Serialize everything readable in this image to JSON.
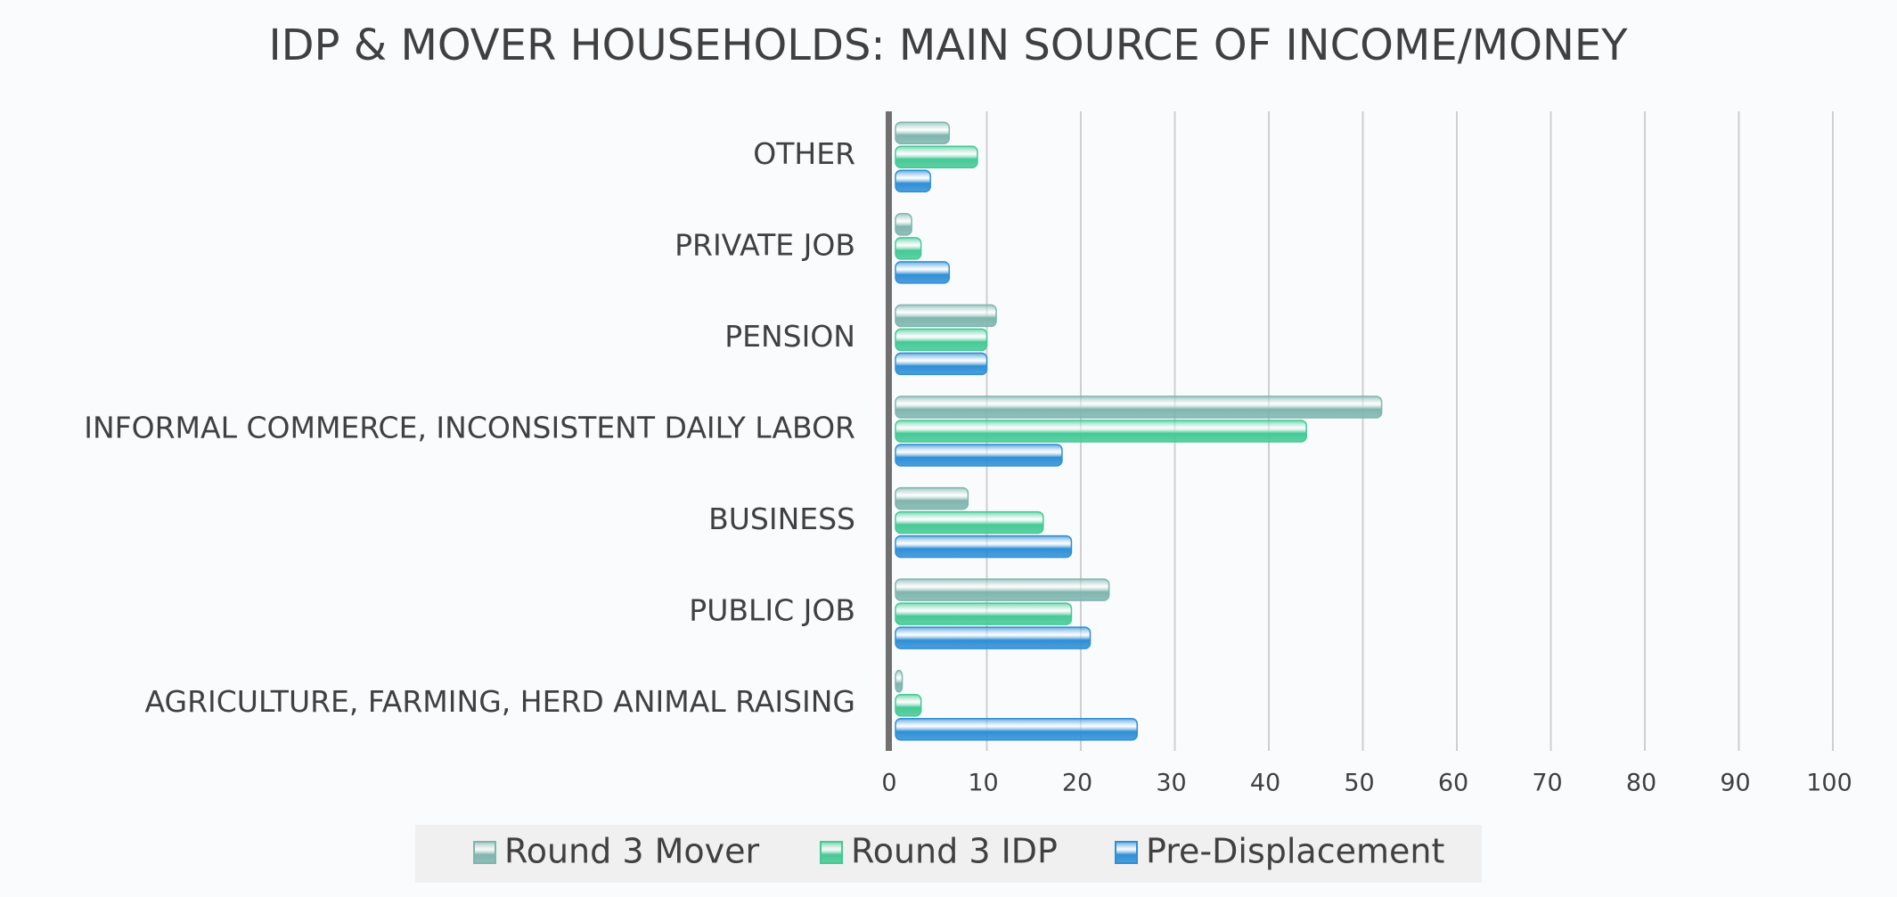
{
  "chart_data": {
    "type": "bar",
    "orientation": "horizontal",
    "title": "IDP & MOVER HOUSEHOLDS: MAIN SOURCE OF INCOME/MONEY",
    "categories": [
      "OTHER",
      "PRIVATE JOB",
      "PENSION",
      "INFORMAL COMMERCE, INCONSISTENT DAILY LABOR",
      "BUSINESS",
      "PUBLIC JOB",
      "AGRICULTURE, FARMING, HERD ANIMAL RAISING"
    ],
    "series": [
      {
        "name": "Round 3 Mover",
        "color": "#7fb5ae",
        "values": [
          6,
          2,
          11,
          52,
          8,
          23,
          1
        ]
      },
      {
        "name": "Round 3 IDP",
        "color": "#45c996",
        "values": [
          9,
          3,
          10,
          44,
          16,
          19,
          3
        ]
      },
      {
        "name": "Pre-Displacement",
        "color": "#2f8fd6",
        "values": [
          4,
          6,
          10,
          18,
          19,
          21,
          26
        ]
      }
    ],
    "xlim": [
      0,
      100
    ],
    "xticks": [
      0,
      10,
      20,
      30,
      40,
      50,
      60,
      70,
      80,
      90,
      100
    ],
    "grid": true,
    "legend": "bottom"
  }
}
